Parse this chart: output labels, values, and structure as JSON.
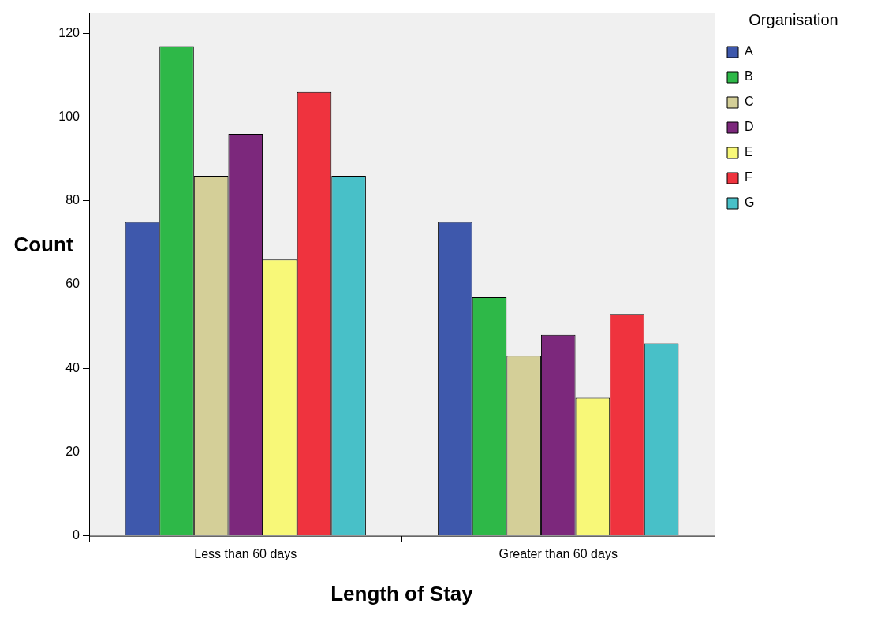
{
  "chart_data": {
    "type": "bar",
    "xlabel": "Length of Stay",
    "ylabel": "Count",
    "legend_title": "Organisation",
    "categories": [
      "Less than 60 days",
      "Greater than 60 days"
    ],
    "series": [
      {
        "name": "A",
        "color": "#3e58ac",
        "values": [
          75,
          75
        ]
      },
      {
        "name": "B",
        "color": "#2eb848",
        "values": [
          117,
          57
        ]
      },
      {
        "name": "C",
        "color": "#d4cf98",
        "values": [
          86,
          43
        ]
      },
      {
        "name": "D",
        "color": "#7c287c",
        "values": [
          96,
          48
        ]
      },
      {
        "name": "E",
        "color": "#f8f878",
        "values": [
          66,
          33
        ]
      },
      {
        "name": "F",
        "color": "#ef333e",
        "values": [
          106,
          53
        ]
      },
      {
        "name": "G",
        "color": "#48c0c8",
        "values": [
          86,
          46
        ]
      }
    ],
    "ylim": [
      0,
      125
    ],
    "yticks": [
      0,
      20,
      40,
      60,
      80,
      100,
      120
    ],
    "grid": false,
    "legend": "top right"
  }
}
